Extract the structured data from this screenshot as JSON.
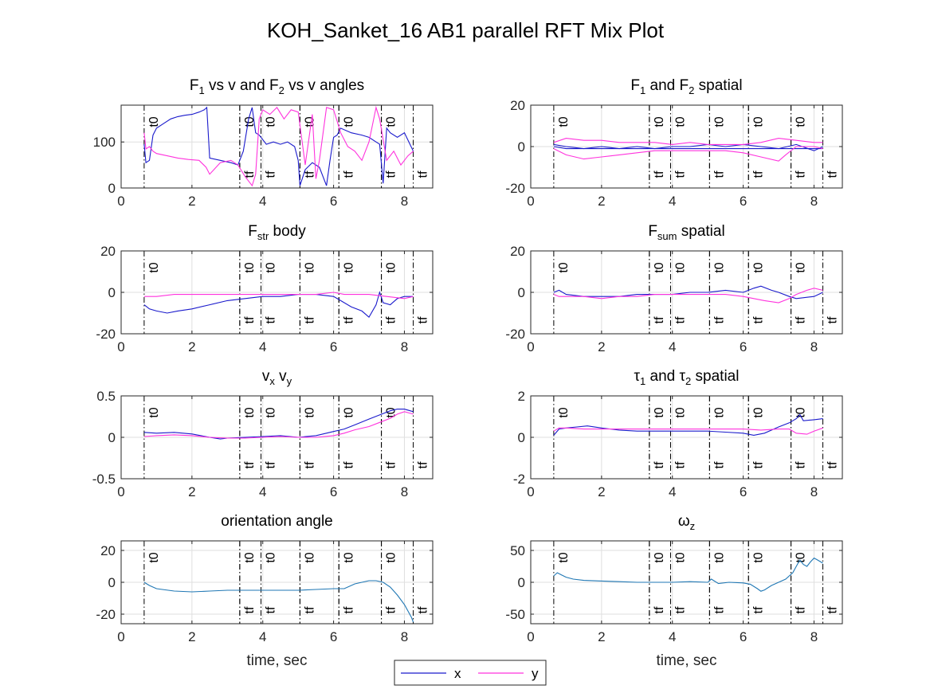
{
  "title": "KOH_Sanket_16 AB1 parallel RFT Mix Plot",
  "legend": {
    "entries": [
      {
        "label": "x",
        "color": "#1a1acc"
      },
      {
        "label": "y",
        "color": "#ff33dd"
      }
    ]
  },
  "markers": {
    "t0_label": "t0",
    "tf_label": "tf",
    "t0_times": [
      0.65,
      3.35,
      3.95,
      5.05,
      6.15,
      7.35
    ],
    "tf_times": [
      3.35,
      3.95,
      5.05,
      6.15,
      7.35,
      8.25
    ]
  },
  "chart_data": [
    {
      "type": "line",
      "title_parts": [
        [
          "F",
          ""
        ],
        [
          "1",
          "sub"
        ],
        [
          " vs v and F",
          ""
        ],
        [
          "2",
          "sub"
        ],
        [
          " vs v angles",
          ""
        ]
      ],
      "xlabel": "",
      "xlim": [
        0,
        8.8
      ],
      "ylim": [
        0,
        180
      ],
      "xticks": [
        0,
        2,
        4,
        6,
        8
      ],
      "yticks": [
        0,
        100
      ],
      "series": [
        {
          "color": "#1a1acc",
          "x": [
            0.65,
            0.7,
            0.8,
            0.9,
            1.0,
            1.2,
            1.4,
            1.6,
            1.8,
            2.0,
            2.2,
            2.35,
            2.42,
            2.5,
            2.8,
            3.1,
            3.3,
            3.45,
            3.6,
            3.7,
            3.8,
            3.9,
            4.1,
            4.3,
            4.5,
            4.7,
            4.9,
            5.0,
            5.05,
            5.2,
            5.4,
            5.6,
            5.8,
            5.9,
            6.0,
            6.1,
            6.2,
            6.5,
            6.8,
            7.0,
            7.2,
            7.3,
            7.4,
            7.5,
            7.6,
            7.8,
            8.0,
            8.25
          ],
          "y": [
            95,
            55,
            60,
            115,
            130,
            140,
            150,
            155,
            158,
            160,
            165,
            170,
            175,
            65,
            60,
            55,
            50,
            80,
            150,
            175,
            120,
            115,
            95,
            100,
            95,
            100,
            90,
            60,
            5,
            40,
            55,
            45,
            5,
            60,
            110,
            115,
            130,
            120,
            115,
            110,
            100,
            95,
            10,
            130,
            120,
            110,
            120,
            80
          ]
        },
        {
          "color": "#ff33dd",
          "x": [
            0.65,
            0.7,
            0.8,
            0.9,
            1.0,
            1.3,
            1.6,
            1.9,
            2.2,
            2.4,
            2.5,
            2.8,
            3.1,
            3.3,
            3.5,
            3.7,
            3.8,
            3.9,
            4.0,
            4.2,
            4.4,
            4.6,
            4.8,
            5.0,
            5.2,
            5.4,
            5.5,
            5.6,
            5.8,
            6.0,
            6.2,
            6.4,
            6.6,
            6.8,
            7.0,
            7.2,
            7.3,
            7.5,
            7.7,
            7.9,
            8.1,
            8.25
          ],
          "y": [
            120,
            85,
            90,
            80,
            75,
            70,
            65,
            62,
            60,
            45,
            30,
            55,
            60,
            50,
            25,
            5,
            30,
            150,
            170,
            160,
            175,
            150,
            170,
            165,
            50,
            160,
            20,
            60,
            175,
            170,
            120,
            90,
            80,
            60,
            100,
            175,
            150,
            60,
            80,
            50,
            70,
            80
          ]
        }
      ]
    },
    {
      "type": "line",
      "title_parts": [
        [
          "F",
          ""
        ],
        [
          "1",
          "sub"
        ],
        [
          " and F",
          ""
        ],
        [
          "2",
          "sub"
        ],
        [
          " spatial",
          ""
        ]
      ],
      "xlabel": "",
      "xlim": [
        0,
        8.8
      ],
      "ylim": [
        -20,
        20
      ],
      "xticks": [
        0,
        2,
        4,
        6,
        8
      ],
      "yticks": [
        -20,
        0,
        20
      ],
      "series": [
        {
          "color": "#1a1acc",
          "x": [
            0.65,
            1.0,
            1.5,
            2.0,
            2.5,
            3.0,
            3.5,
            4.0,
            4.5,
            5.0,
            5.5,
            6.0,
            6.5,
            7.0,
            7.5,
            8.0,
            8.25
          ],
          "y": [
            0,
            -1,
            -1,
            -1,
            -1,
            -1,
            -1,
            -1,
            -1,
            -1,
            -1,
            -1,
            -1,
            -1,
            -1,
            -1,
            -1
          ]
        },
        {
          "color": "#1a1acc",
          "x": [
            0.65,
            1.0,
            1.5,
            2.0,
            2.5,
            3.0,
            3.5,
            4.0,
            4.5,
            5.0,
            5.5,
            6.0,
            6.5,
            7.0,
            7.5,
            8.0,
            8.25
          ],
          "y": [
            1,
            0,
            -1,
            0,
            -1,
            0,
            -1,
            0,
            0,
            1,
            0,
            1,
            0,
            -1,
            1,
            -2,
            0
          ]
        },
        {
          "color": "#ff33dd",
          "x": [
            0.65,
            1.0,
            1.5,
            2.0,
            2.5,
            3.0,
            3.5,
            4.0,
            4.5,
            5.0,
            5.5,
            6.0,
            6.5,
            7.0,
            7.2,
            7.5,
            8.0,
            8.25
          ],
          "y": [
            -1,
            -4,
            -6,
            -5,
            -4,
            -3,
            -2,
            -2,
            -2,
            -2,
            -2,
            -3,
            -5,
            -7,
            -4,
            0,
            0,
            -1
          ]
        },
        {
          "color": "#ff33dd",
          "x": [
            0.65,
            1.0,
            1.5,
            2.0,
            2.5,
            3.0,
            3.5,
            4.0,
            4.5,
            5.0,
            5.5,
            6.0,
            6.5,
            7.0,
            7.5,
            8.0,
            8.25
          ],
          "y": [
            2,
            4,
            3,
            3,
            2,
            2,
            2,
            1,
            2,
            1,
            1,
            1,
            2,
            4,
            3,
            2,
            2
          ]
        }
      ]
    },
    {
      "type": "line",
      "title_parts": [
        [
          "F",
          ""
        ],
        [
          "str",
          "sub"
        ],
        [
          " body",
          ""
        ]
      ],
      "xlabel": "",
      "xlim": [
        0,
        8.8
      ],
      "ylim": [
        -20,
        20
      ],
      "xticks": [
        0,
        2,
        4,
        6,
        8
      ],
      "yticks": [
        -20,
        0,
        20
      ],
      "series": [
        {
          "color": "#1a1acc",
          "x": [
            0.65,
            0.8,
            1.0,
            1.3,
            1.6,
            2.0,
            2.5,
            3.0,
            3.5,
            4.0,
            4.5,
            5.0,
            5.5,
            6.0,
            6.2,
            6.5,
            6.8,
            7.0,
            7.2,
            7.3,
            7.4,
            7.6,
            7.8,
            8.0,
            8.25
          ],
          "y": [
            -6,
            -8,
            -9,
            -10,
            -9,
            -8,
            -6,
            -4,
            -3,
            -2,
            -2,
            -1,
            -1,
            -2,
            -4,
            -7,
            -9,
            -12,
            -6,
            0,
            -5,
            -6,
            -3,
            -2,
            -2
          ]
        },
        {
          "color": "#ff33dd",
          "x": [
            0.65,
            1.0,
            1.5,
            2.0,
            2.5,
            3.0,
            3.5,
            4.0,
            4.5,
            5.0,
            5.5,
            6.0,
            6.3,
            6.6,
            7.0,
            7.5,
            8.0,
            8.25
          ],
          "y": [
            -2,
            -2,
            -1,
            -1,
            -1,
            -1,
            -1,
            -1,
            -1,
            -1,
            -1,
            0,
            -1,
            -1,
            -1,
            -2,
            -3,
            -2
          ]
        }
      ]
    },
    {
      "type": "line",
      "title_parts": [
        [
          "F",
          ""
        ],
        [
          "sum",
          "sub"
        ],
        [
          " spatial",
          ""
        ]
      ],
      "xlabel": "",
      "xlim": [
        0,
        8.8
      ],
      "ylim": [
        -20,
        20
      ],
      "xticks": [
        0,
        2,
        4,
        6,
        8
      ],
      "yticks": [
        -20,
        0,
        20
      ],
      "series": [
        {
          "color": "#1a1acc",
          "x": [
            0.65,
            0.8,
            1.0,
            1.5,
            2.0,
            2.5,
            3.0,
            3.5,
            4.0,
            4.5,
            5.0,
            5.5,
            6.0,
            6.3,
            6.5,
            6.8,
            7.0,
            7.3,
            7.5,
            8.0,
            8.25
          ],
          "y": [
            0,
            1,
            -1,
            -2,
            -2,
            -2,
            -1,
            -1,
            -1,
            0,
            0,
            1,
            0,
            2,
            3,
            1,
            0,
            -2,
            -3,
            -2,
            0
          ]
        },
        {
          "color": "#ff33dd",
          "x": [
            0.65,
            0.8,
            1.0,
            1.5,
            2.0,
            2.5,
            3.0,
            3.5,
            4.0,
            4.5,
            5.0,
            5.5,
            6.0,
            6.3,
            6.6,
            7.0,
            7.3,
            7.5,
            7.8,
            8.0,
            8.25
          ],
          "y": [
            -1,
            -2,
            -2,
            -2,
            -3,
            -2,
            -2,
            -1,
            -1,
            -1,
            -1,
            -1,
            -2,
            -3,
            -4,
            -5,
            -3,
            -1,
            1,
            2,
            1
          ]
        }
      ]
    },
    {
      "type": "line",
      "title_parts": [
        [
          "v",
          ""
        ],
        [
          "x",
          "sub"
        ],
        [
          " v",
          ""
        ],
        [
          "y",
          "sub"
        ]
      ],
      "xlabel": "",
      "xlim": [
        0,
        8.8
      ],
      "ylim": [
        -0.5,
        0.5
      ],
      "xticks": [
        0,
        2,
        4,
        6,
        8
      ],
      "yticks": [
        -0.5,
        0,
        0.5
      ],
      "series": [
        {
          "color": "#1a1acc",
          "x": [
            0.65,
            1.0,
            1.5,
            2.0,
            2.5,
            2.8,
            3.0,
            3.5,
            4.0,
            4.5,
            5.0,
            5.5,
            6.0,
            6.3,
            6.6,
            7.0,
            7.3,
            7.6,
            7.8,
            8.0,
            8.25
          ],
          "y": [
            0.06,
            0.05,
            0.06,
            0.04,
            0.0,
            -0.02,
            -0.01,
            0.0,
            0.01,
            0.02,
            0.0,
            0.02,
            0.07,
            0.1,
            0.15,
            0.22,
            0.27,
            0.32,
            0.34,
            0.34,
            0.31
          ]
        },
        {
          "color": "#ff33dd",
          "x": [
            0.65,
            1.0,
            1.5,
            2.0,
            2.5,
            3.0,
            3.5,
            4.0,
            4.5,
            5.0,
            5.5,
            6.0,
            6.3,
            6.6,
            7.0,
            7.3,
            7.6,
            7.8,
            8.0,
            8.25
          ],
          "y": [
            0.01,
            0.02,
            0.03,
            0.02,
            0.0,
            -0.01,
            -0.01,
            0.0,
            0.01,
            0.0,
            0.0,
            0.02,
            0.05,
            0.09,
            0.13,
            0.18,
            0.23,
            0.28,
            0.31,
            0.28
          ]
        }
      ]
    },
    {
      "type": "line",
      "title_parts": [
        [
          "τ",
          ""
        ],
        [
          "1",
          "sub"
        ],
        [
          " and τ",
          ""
        ],
        [
          "2",
          "sub"
        ],
        [
          " spatial",
          ""
        ]
      ],
      "xlabel": "",
      "xlim": [
        0,
        8.8
      ],
      "ylim": [
        -2,
        2
      ],
      "xticks": [
        0,
        2,
        4,
        6,
        8
      ],
      "yticks": [
        -2,
        0,
        2
      ],
      "series": [
        {
          "color": "#1a1acc",
          "x": [
            0.65,
            0.8,
            1.0,
            1.3,
            1.6,
            2.0,
            2.5,
            3.0,
            3.5,
            4.0,
            4.5,
            5.0,
            5.5,
            6.0,
            6.3,
            6.6,
            7.0,
            7.3,
            7.5,
            7.6,
            7.7,
            8.0,
            8.25
          ],
          "y": [
            0.1,
            0.4,
            0.45,
            0.5,
            0.55,
            0.45,
            0.35,
            0.3,
            0.3,
            0.3,
            0.3,
            0.3,
            0.25,
            0.2,
            0.1,
            0.2,
            0.5,
            0.7,
            0.9,
            1.1,
            0.8,
            0.85,
            0.9
          ]
        },
        {
          "color": "#ff33dd",
          "x": [
            0.65,
            0.8,
            1.0,
            1.5,
            2.0,
            2.5,
            3.0,
            3.5,
            4.0,
            4.5,
            5.0,
            5.5,
            6.0,
            6.5,
            7.0,
            7.3,
            7.5,
            7.8,
            8.0,
            8.25
          ],
          "y": [
            0.3,
            0.45,
            0.45,
            0.4,
            0.4,
            0.4,
            0.4,
            0.4,
            0.4,
            0.4,
            0.4,
            0.4,
            0.4,
            0.35,
            0.4,
            0.4,
            0.2,
            0.15,
            0.3,
            0.45
          ]
        }
      ]
    },
    {
      "type": "line",
      "title_parts": [
        [
          "orientation angle",
          ""
        ]
      ],
      "xlabel": "time, sec",
      "xlim": [
        0,
        8.8
      ],
      "ylim": [
        -26,
        26
      ],
      "xticks": [
        0,
        2,
        4,
        6,
        8
      ],
      "yticks": [
        -20,
        0,
        20
      ],
      "series": [
        {
          "color": "#1f77b4",
          "x": [
            0.65,
            0.8,
            1.0,
            1.5,
            2.0,
            2.5,
            3.0,
            3.5,
            4.0,
            4.5,
            5.0,
            5.5,
            6.0,
            6.3,
            6.6,
            6.8,
            7.0,
            7.2,
            7.4,
            7.6,
            7.8,
            8.0,
            8.2,
            8.25
          ],
          "y": [
            0,
            -2,
            -4,
            -5.5,
            -6,
            -5.5,
            -5,
            -5,
            -5,
            -5,
            -5,
            -4.5,
            -4,
            -4,
            -1,
            0,
            1,
            1,
            0,
            -3,
            -8,
            -14,
            -22,
            -25
          ]
        }
      ]
    },
    {
      "type": "line",
      "title_parts": [
        [
          "ω",
          ""
        ],
        [
          "z",
          "sub"
        ]
      ],
      "xlabel": "time, sec",
      "xlim": [
        0,
        8.8
      ],
      "ylim": [
        -65,
        65
      ],
      "xticks": [
        0,
        2,
        4,
        6,
        8
      ],
      "yticks": [
        -50,
        0,
        50
      ],
      "series": [
        {
          "color": "#1f77b4",
          "x": [
            0.65,
            0.75,
            0.85,
            1.0,
            1.2,
            1.5,
            2.0,
            2.5,
            3.0,
            3.5,
            4.0,
            4.5,
            5.0,
            5.1,
            5.3,
            5.6,
            6.0,
            6.2,
            6.4,
            6.5,
            6.6,
            6.8,
            7.0,
            7.2,
            7.4,
            7.5,
            7.6,
            7.7,
            7.8,
            7.9,
            8.0,
            8.1,
            8.25
          ],
          "y": [
            10,
            15,
            12,
            8,
            5,
            3,
            2,
            1,
            0,
            0,
            0,
            1,
            0,
            5,
            -2,
            0,
            -1,
            -3,
            -10,
            -14,
            -12,
            -5,
            0,
            5,
            15,
            25,
            35,
            28,
            25,
            32,
            38,
            35,
            30
          ]
        }
      ]
    }
  ]
}
